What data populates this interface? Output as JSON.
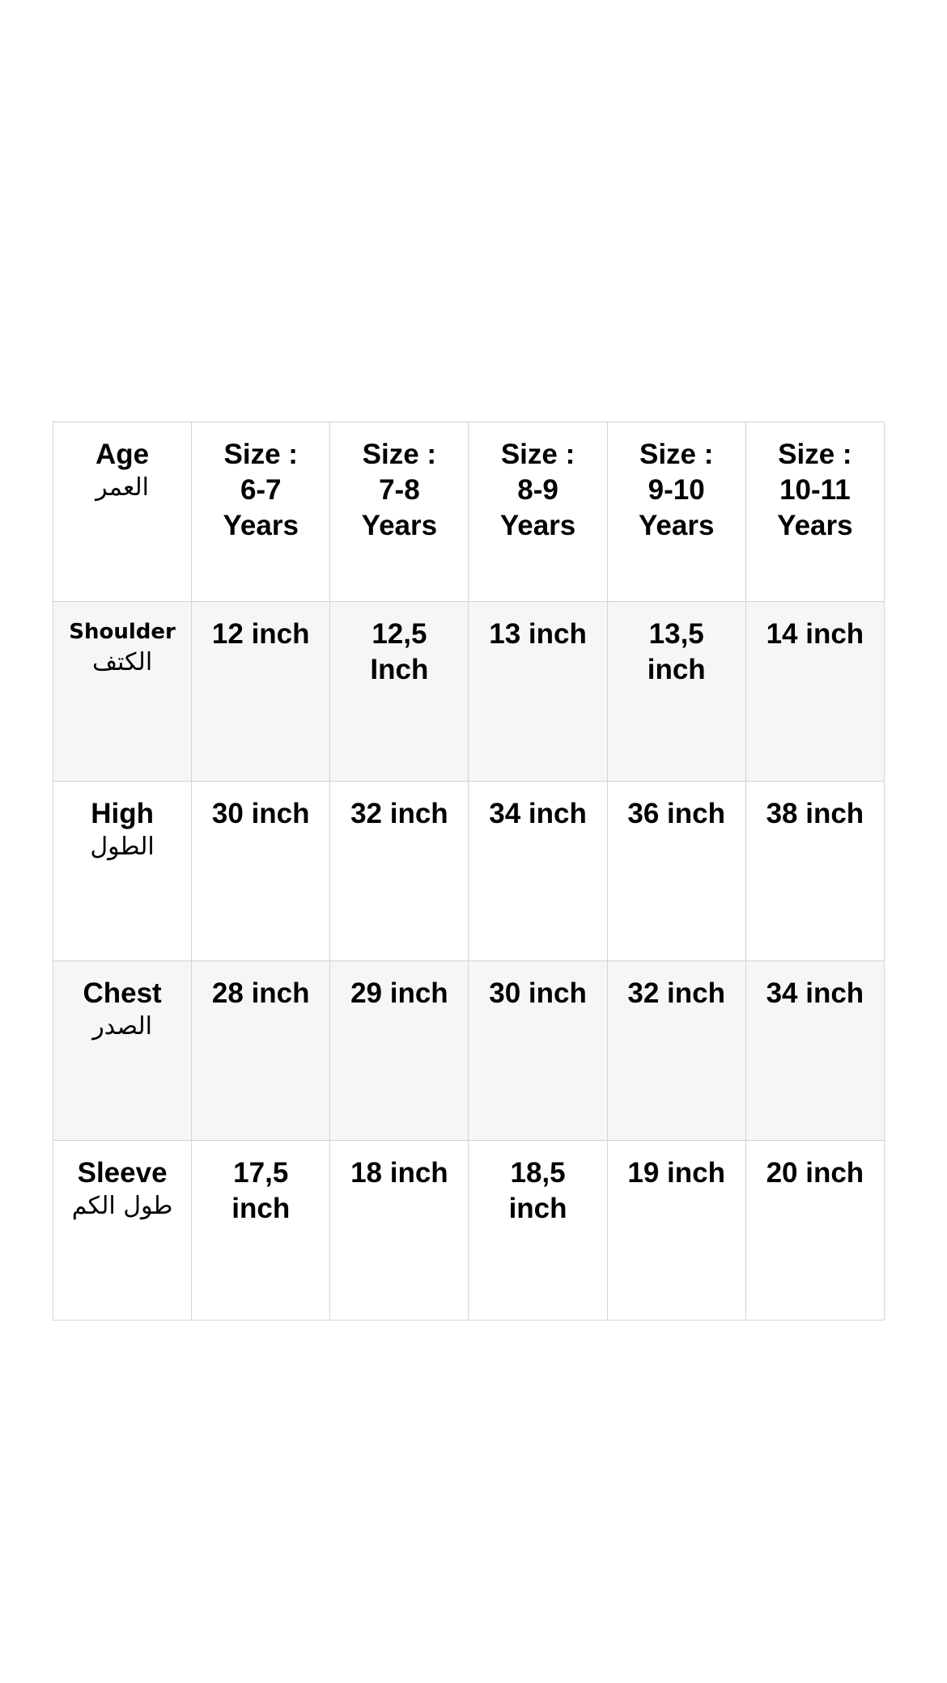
{
  "header": {
    "label_en": "Age",
    "label_ar": "العمر",
    "sizes": [
      {
        "l1": "Size :",
        "l2": "6-7",
        "l3": "Years"
      },
      {
        "l1": "Size :",
        "l2": "7-8",
        "l3": "Years"
      },
      {
        "l1": "Size :",
        "l2": "8-9",
        "l3": "Years"
      },
      {
        "l1": "Size :",
        "l2": "9-10",
        "l3": "Years"
      },
      {
        "l1": "Size :",
        "l2": "10-11",
        "l3": "Years"
      }
    ]
  },
  "rows": [
    {
      "label_en": "Shoulder",
      "label_ar": "الكتف",
      "values": [
        "12 inch",
        "12,5 Inch",
        "13 inch",
        "13,5 inch",
        "14 inch"
      ]
    },
    {
      "label_en": "High",
      "label_ar": "الطول",
      "values": [
        "30 inch",
        "32 inch",
        "34 inch",
        "36 inch",
        "38 inch"
      ]
    },
    {
      "label_en": "Chest",
      "label_ar": "الصدر",
      "values": [
        "28 inch",
        "29 inch",
        "30 inch",
        "32 inch",
        "34 inch"
      ]
    },
    {
      "label_en": "Sleeve",
      "label_ar": "طول الكم",
      "values": [
        "17,5 inch",
        "18 inch",
        "18,5 inch",
        "19 inch",
        "20 inch"
      ]
    }
  ],
  "colors": {
    "border": "#d2d2d2",
    "alt_row": "#f6f6f6"
  }
}
